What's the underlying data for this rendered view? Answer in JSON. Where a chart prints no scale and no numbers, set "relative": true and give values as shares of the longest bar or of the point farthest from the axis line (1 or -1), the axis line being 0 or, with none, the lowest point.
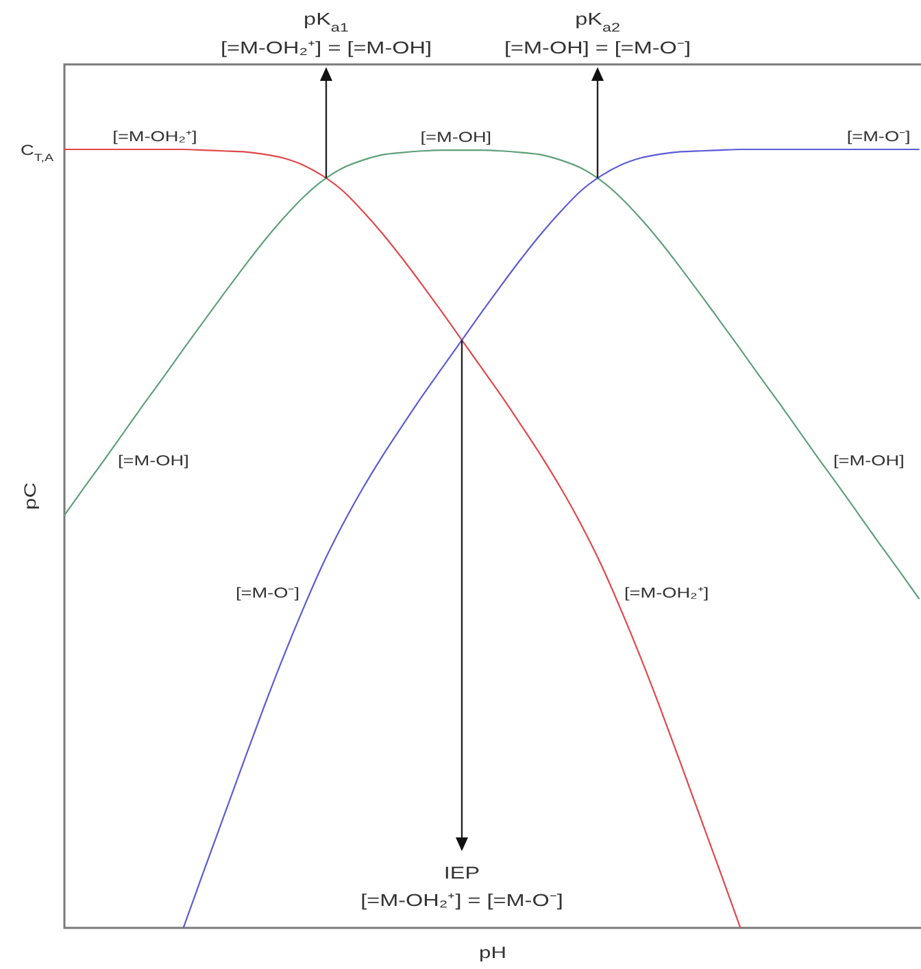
{
  "chart_data": {
    "type": "line",
    "xlabel": "pH",
    "ylabel": "pC",
    "relative": true,
    "categories": [
      null,
      null,
      null,
      null,
      null,
      null,
      null,
      null,
      null,
      null,
      null,
      null,
      null,
      null,
      null,
      null,
      null,
      null,
      null,
      null,
      null,
      null,
      null,
      null,
      null,
      null,
      null,
      null,
      null,
      null,
      null,
      null,
      null,
      null,
      null,
      null,
      null,
      null,
      null,
      null,
      null,
      null,
      null,
      null
    ],
    "series": [
      {
        "name": "[=M-OH₂⁺]",
        "color": "#e0474c",
        "values": [
          1,
          1,
          1,
          1,
          1,
          1,
          1,
          0.999,
          0.998,
          0.997,
          0.994,
          0.989,
          0.98,
          0.966,
          0.947,
          0.921,
          0.892,
          0.86,
          0.826,
          0.791,
          0.755,
          0.719,
          0.683,
          0.645,
          0.606,
          0.564,
          0.518,
          0.467,
          0.409,
          0.347,
          0.281,
          0.212,
          0.142,
          0.072,
          0.001,
          null,
          null,
          null,
          null,
          null,
          null,
          null,
          null,
          null
        ]
      },
      {
        "name": "[=M-OH]",
        "color": "#5fa07a",
        "values": [
          0.53,
          0.566,
          0.601,
          0.637,
          0.673,
          0.708,
          0.744,
          0.779,
          0.814,
          0.848,
          0.881,
          0.911,
          0.938,
          0.96,
          0.976,
          0.986,
          0.993,
          0.996,
          0.998,
          0.999,
          0.999,
          0.999,
          0.998,
          0.996,
          0.993,
          0.986,
          0.976,
          0.96,
          0.938,
          0.911,
          0.881,
          0.848,
          0.814,
          0.779,
          0.744,
          0.708,
          0.673,
          0.637,
          0.601,
          0.566,
          0.53,
          0.494,
          0.459,
          0.423
        ]
      },
      {
        "name": "[=M-O⁻]",
        "color": "#5b5bd6",
        "values": [
          null,
          null,
          null,
          null,
          null,
          null,
          0.001,
          0.072,
          0.142,
          0.212,
          0.281,
          0.347,
          0.409,
          0.467,
          0.518,
          0.564,
          0.606,
          0.645,
          0.683,
          0.719,
          0.755,
          0.791,
          0.826,
          0.86,
          0.892,
          0.921,
          0.947,
          0.966,
          0.98,
          0.989,
          0.994,
          0.997,
          0.998,
          0.999,
          1,
          1,
          1,
          1,
          1,
          1,
          1,
          1,
          1,
          1
        ]
      }
    ],
    "annotations": [
      "C$_{T,A}$",
      "pK$_{a1}$",
      "[=M-OH₂⁺] = [=M-OH]",
      "pK$_{a2}$",
      "[=M-OH] = [=M-O⁻]",
      "IEP",
      "[=M-OH₂⁺] = [=M-O⁻]"
    ]
  }
}
